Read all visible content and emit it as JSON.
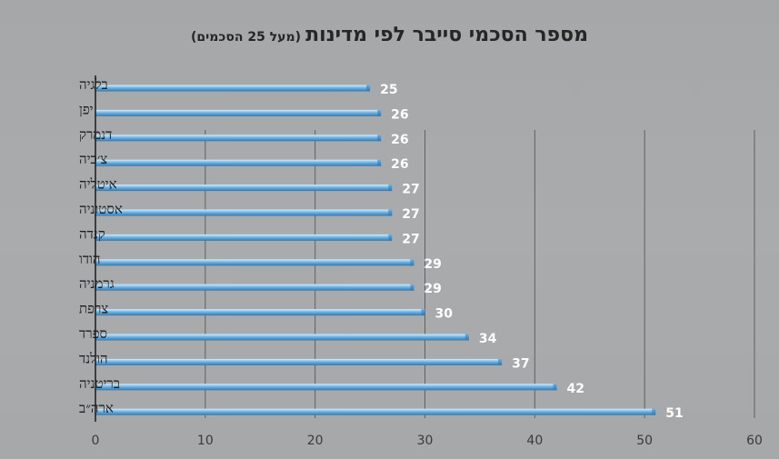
{
  "chart_data": {
    "type": "bar",
    "orientation": "horizontal",
    "title": "מספר הסכמי סייבר לפי מדינות",
    "subtitle": "(מעל 25 הסכמים)",
    "categories": [
      "בלגיה",
      "יפן",
      "דנמרק",
      "צ׳כיה",
      "איטליה",
      "אסטוניה",
      "קנדה",
      "הודו",
      "גרמניה",
      "צרפת",
      "ספרד",
      "הולנד",
      "בריטניה",
      "ארה״ב"
    ],
    "values": [
      25,
      26,
      26,
      26,
      27,
      27,
      27,
      29,
      29,
      30,
      34,
      37,
      42,
      51
    ],
    "xlim": [
      0,
      60
    ],
    "xticks": [
      0,
      10,
      20,
      30,
      40,
      50,
      60
    ],
    "grid": "vertical",
    "legend": "none",
    "colors": {
      "bar_light": "#d6ecfb",
      "bar_mid": "#6fb3e3",
      "bar_dark": "#2f78b3",
      "gridline": "#5f6163",
      "axis": "#1a1a1a",
      "value_text": "#ffffff"
    }
  }
}
